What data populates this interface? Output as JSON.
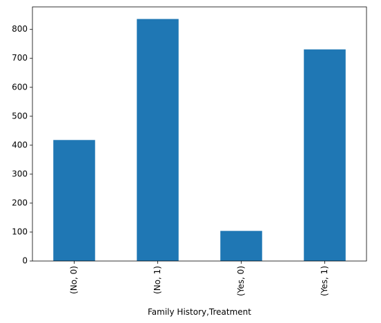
{
  "chart_data": {
    "type": "bar",
    "title": "",
    "xlabel": "Family History,Treatment",
    "ylabel": "",
    "categories": [
      "(No, 0)",
      "(No, 1)",
      "(Yes, 0)",
      "(Yes, 1)"
    ],
    "values": [
      418,
      836,
      104,
      731
    ],
    "ylim": [
      0,
      877.8
    ],
    "yticks": [
      0,
      100,
      200,
      300,
      400,
      500,
      600,
      700,
      800
    ],
    "grid": false,
    "legend": "none",
    "colors": {
      "bar": "#1f77b4",
      "axis": "#000000"
    }
  }
}
